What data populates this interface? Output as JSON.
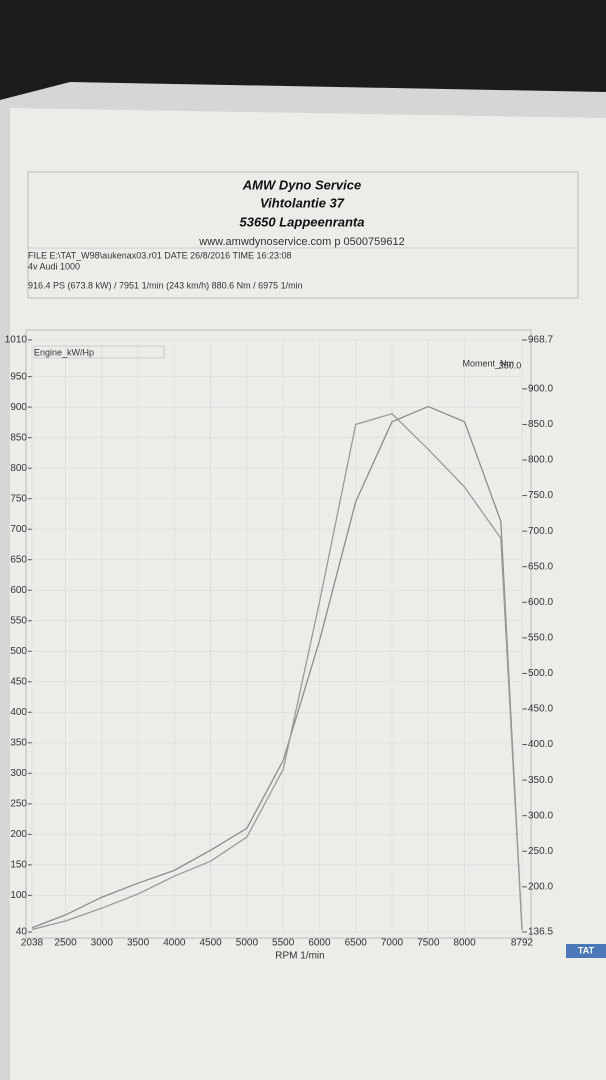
{
  "header": {
    "company": "AMW Dyno Service",
    "street": "Vihtolantie 37",
    "city": "53650 Lappeenranta",
    "contact": "www.amwdynoservice.com p 0500759612",
    "file_line": "FILE  E:\\TAT_W98\\aukenax03.r01  DATE  26/8/2016  TIME  16:23:08",
    "vehicle": "4v Audi 1000",
    "result": "916.4 PS  (673.8 kW) / 7951 1/min (243 km/h)    880.6 Nm / 6975 1/min"
  },
  "chart_data": {
    "type": "line",
    "x_label": "RPM  1/min",
    "corner_label": "350.0",
    "logo": "TAT",
    "x": [
      2038,
      2500,
      3000,
      3500,
      4000,
      4500,
      5000,
      5500,
      6000,
      6500,
      7000,
      7500,
      8000,
      8500,
      8792
    ],
    "series": [
      {
        "name": "Engine_kW/Hp",
        "color": "#8c8c8c",
        "values": [
          47,
          68,
          97,
          120,
          141,
          174,
          210,
          321,
          517,
          745,
          876,
          901,
          876,
          713,
          43
        ]
      },
      {
        "name": "Moment_Nm",
        "color": "#9a9a9a",
        "axis": "y2",
        "values": [
          140,
          152,
          170,
          190,
          215,
          236,
          270,
          365,
          600,
          850,
          865,
          815,
          762,
          690,
          140
        ]
      }
    ],
    "xlim": [
      2038,
      8792
    ],
    "xticks": [
      2038,
      2500,
      3000,
      3500,
      4000,
      4500,
      5000,
      5500,
      6000,
      6500,
      7000,
      7500,
      8000,
      8792
    ],
    "ylim": [
      40,
      1010
    ],
    "yticks": [
      40,
      100,
      150,
      200,
      250,
      300,
      350,
      400,
      450,
      500,
      550,
      600,
      650,
      700,
      750,
      800,
      850,
      900,
      950,
      1010
    ],
    "y2lim": [
      136.5,
      968.7
    ],
    "y2ticks": [
      136.5,
      {
        "value": 200,
        "label": "200.0"
      },
      {
        "value": 250,
        "label": "250.0"
      },
      {
        "value": 300,
        "label": "300.0"
      },
      {
        "value": 350,
        "label": "350.0"
      },
      {
        "value": 400,
        "label": "400.0"
      },
      {
        "value": 450,
        "label": "450.0"
      },
      {
        "value": 500,
        "label": "500.0"
      },
      {
        "value": 550,
        "label": "550.0"
      },
      {
        "value": 600,
        "label": "600.0"
      },
      {
        "value": 650,
        "label": "650.0"
      },
      {
        "value": 700,
        "label": "700.0"
      },
      {
        "value": 750,
        "label": "750.0"
      },
      {
        "value": 800,
        "label": "800.0"
      },
      {
        "value": 850,
        "label": "850.0"
      },
      {
        "value": 900,
        "label": "900.0"
      },
      968.7
    ],
    "grid": true
  }
}
